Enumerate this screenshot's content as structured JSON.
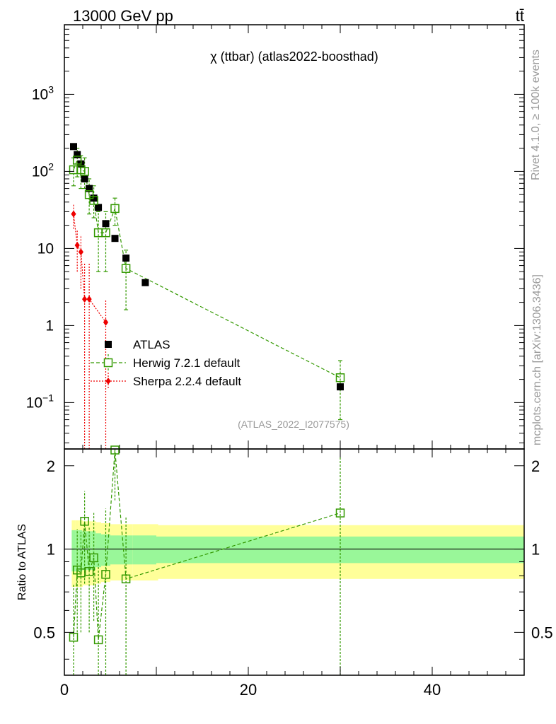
{
  "header": {
    "left": "13000 GeV pp",
    "right": "tt̄"
  },
  "side_labels": {
    "rivet": "Rivet 4.1.0, ≥ 100k events",
    "mcplots": "mcplots.cern.ch [arXiv:1306.3436]"
  },
  "colors": {
    "data": "#000000",
    "herwig": "#339900",
    "sherpa": "#ee0000",
    "band_inner": "#99f799",
    "band_outer": "#ffff99"
  },
  "chart_data": {
    "type": "scatter",
    "title": "χ (ttbar) (atlas2022-boosthad)",
    "watermark": "(ATLAS_2022_I2077575)",
    "xlabel": "",
    "ylabel": "",
    "ratio_ylabel": "Ratio to ATLAS",
    "xlim": [
      0,
      50
    ],
    "ylim": [
      0.025,
      8000
    ],
    "yscale": "log",
    "ratio_ylim": [
      0.35,
      2.3
    ],
    "x_ticks": [
      {
        "v": 0,
        "label": "0"
      },
      {
        "v": 20,
        "label": "20"
      },
      {
        "v": 40,
        "label": "40"
      }
    ],
    "y_ticks": [
      {
        "v": 0.1,
        "base": "10",
        "exp": "−1"
      },
      {
        "v": 1,
        "base": "1",
        "exp": ""
      },
      {
        "v": 10,
        "base": "10",
        "exp": ""
      },
      {
        "v": 100,
        "base": "10",
        "exp": "2"
      },
      {
        "v": 1000,
        "base": "10",
        "exp": "3"
      }
    ],
    "ratio_ticks": [
      {
        "v": 0.5,
        "label": "0.5"
      },
      {
        "v": 1,
        "label": "1"
      },
      {
        "v": 2,
        "label": "2"
      }
    ],
    "legend": [
      {
        "name": "ATLAS",
        "marker": "square-filled",
        "key": "data"
      },
      {
        "name": "Herwig 7.2.1 default",
        "marker": "square-open",
        "key": "herwig"
      },
      {
        "name": "Sherpa 2.2.4 default",
        "marker": "diamond-filled",
        "key": "sherpa"
      }
    ],
    "legend_position": "middle-left",
    "series": [
      {
        "name": "ATLAS",
        "key": "data",
        "x": [
          1.0,
          1.4,
          1.8,
          2.2,
          2.7,
          3.2,
          3.7,
          4.5,
          5.5,
          6.7,
          8.8,
          30.0
        ],
        "y": [
          210,
          165,
          125,
          80,
          60,
          45,
          34,
          21,
          13.5,
          7.5,
          3.6,
          0.16
        ],
        "xerr": [
          0.2,
          0.2,
          0.2,
          0.25,
          0.25,
          0.25,
          0.3,
          0.5,
          0.5,
          0.7,
          1.4,
          20.0
        ],
        "band_rel_inner": [
          0.17,
          0.17,
          0.17,
          0.16,
          0.16,
          0.16,
          0.14,
          0.13,
          0.12,
          0.12,
          0.12,
          0.11
        ],
        "band_rel_outer": [
          0.27,
          0.27,
          0.27,
          0.26,
          0.26,
          0.26,
          0.25,
          0.24,
          0.23,
          0.23,
          0.23,
          0.22
        ]
      },
      {
        "name": "Herwig 7.2.1 default",
        "key": "herwig",
        "x": [
          1.0,
          1.4,
          1.8,
          2.2,
          2.7,
          3.2,
          3.7,
          4.5,
          5.5,
          6.7,
          30.0
        ],
        "y": [
          105,
          140,
          105,
          100,
          50,
          42,
          16,
          16,
          33,
          5.5,
          0.21
        ],
        "ylo": [
          65,
          85,
          60,
          60,
          28,
          25,
          5,
          5,
          20,
          1.6,
          0.06
        ],
        "yhi": [
          150,
          200,
          160,
          150,
          80,
          65,
          30,
          30,
          45,
          9.5,
          0.35
        ],
        "ratio": [
          0.48,
          0.84,
          0.82,
          1.26,
          0.83,
          0.93,
          0.47,
          0.81,
          2.28,
          0.78,
          1.35
        ],
        "ratio_lo": [
          0.3,
          0.5,
          0.5,
          0.75,
          0.5,
          0.55,
          0.3,
          0.3,
          1.5,
          0.3,
          0.3
        ],
        "ratio_hi": [
          0.75,
          1.18,
          1.15,
          1.62,
          1.2,
          1.35,
          0.9,
          1.4,
          2.3,
          1.3,
          2.15
        ]
      },
      {
        "name": "Sherpa 2.2.4 default",
        "key": "sherpa",
        "x": [
          1.0,
          1.4,
          1.8,
          2.2,
          2.7,
          4.5
        ],
        "y": [
          28,
          11,
          9,
          2.2,
          2.2,
          1.1
        ],
        "ylo": [
          18,
          5,
          3,
          0.01,
          0.01,
          0.01
        ],
        "yhi": [
          38,
          17,
          15,
          6.5,
          6.5,
          2.2
        ]
      }
    ]
  }
}
